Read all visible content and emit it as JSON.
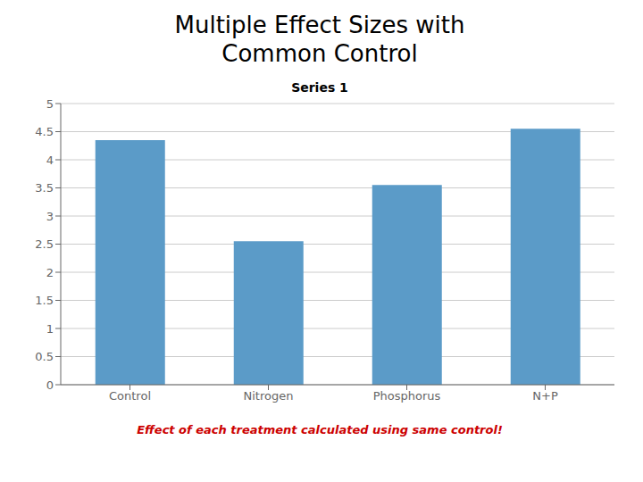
{
  "chart_data": {
    "type": "bar",
    "title": "Multiple Effect Sizes with\nCommon Control",
    "subtitle": "Series 1",
    "categories": [
      "Control",
      "Nitrogen",
      "Phosphorus",
      "N+P"
    ],
    "values": [
      4.35,
      2.55,
      3.55,
      4.55
    ],
    "color": "#5b9bc8",
    "ylim": [
      0,
      5
    ],
    "yticks": [
      0,
      0.5,
      1,
      1.5,
      2,
      2.5,
      3,
      3.5,
      4,
      4.5,
      5
    ],
    "grid": true,
    "annotations": [
      {
        "text": "Effect of each treatment calculated using same control!",
        "color": "#cc0000"
      }
    ]
  }
}
